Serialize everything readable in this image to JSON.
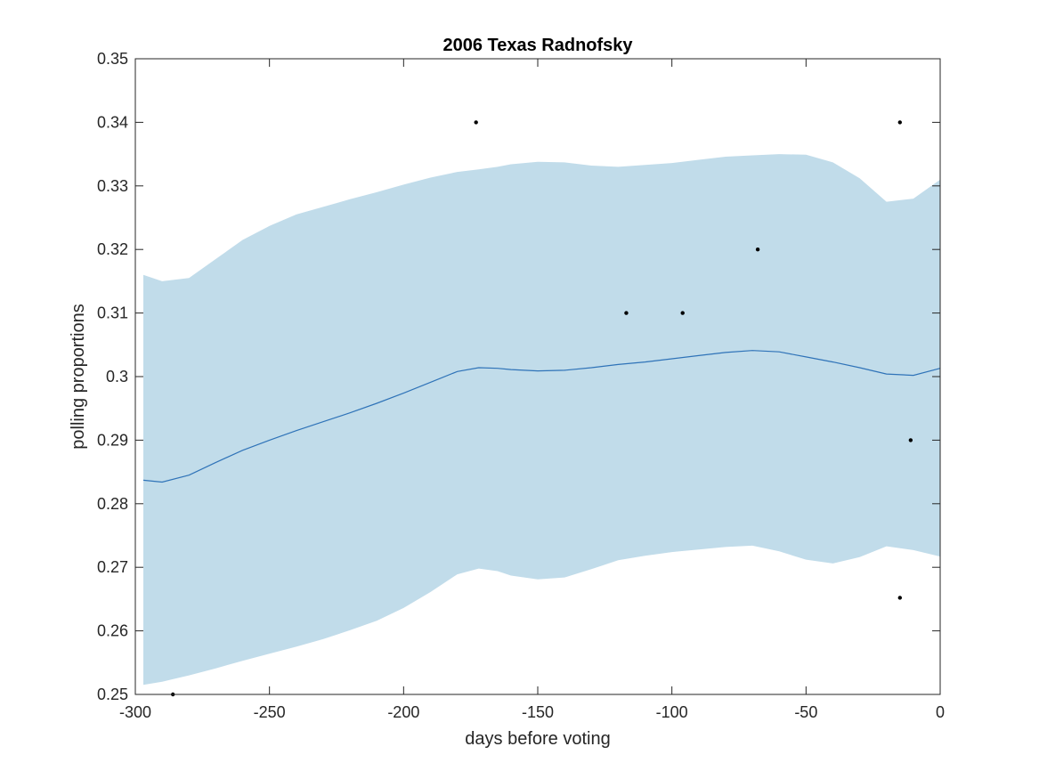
{
  "chart_data": {
    "type": "line",
    "title": "2006 Texas Radnofsky",
    "xlabel": "days before voting",
    "ylabel": "polling proportions",
    "xlim": [
      -300,
      0
    ],
    "ylim": [
      0.25,
      0.35
    ],
    "xticks": [
      -300,
      -250,
      -200,
      -150,
      -100,
      -50,
      0
    ],
    "yticks": [
      0.25,
      0.26,
      0.27,
      0.28,
      0.29,
      0.3,
      0.31,
      0.32,
      0.33,
      0.34,
      0.35
    ],
    "xtick_labels": [
      "-300",
      "-250",
      "-200",
      "-150",
      "-100",
      "-50",
      "0"
    ],
    "ytick_labels": [
      "0.25",
      "0.26",
      "0.27",
      "0.28",
      "0.29",
      "0.3",
      "0.31",
      "0.32",
      "0.33",
      "0.34",
      "0.35"
    ],
    "grid": false,
    "colors": {
      "mean": "#2f73b8",
      "band": "#c1dcea",
      "points": "#000000",
      "axis": "#262626"
    },
    "mean_curve": {
      "x": [
        -297,
        -290,
        -280,
        -270,
        -260,
        -250,
        -240,
        -230,
        -220,
        -210,
        -200,
        -190,
        -180,
        -172,
        -165,
        -160,
        -150,
        -140,
        -130,
        -120,
        -110,
        -100,
        -90,
        -80,
        -70,
        -60,
        -50,
        -40,
        -30,
        -20,
        -10,
        0
      ],
      "y": [
        0.2837,
        0.2834,
        0.2845,
        0.2865,
        0.2884,
        0.29,
        0.2915,
        0.2929,
        0.2943,
        0.2958,
        0.2974,
        0.2991,
        0.3008,
        0.3014,
        0.3013,
        0.3011,
        0.3009,
        0.301,
        0.3014,
        0.3019,
        0.3023,
        0.3028,
        0.3033,
        0.3038,
        0.3041,
        0.3039,
        0.3031,
        0.3023,
        0.3014,
        0.3004,
        0.3002,
        0.3013
      ]
    },
    "band_upper": {
      "x": [
        -297,
        -290,
        -280,
        -270,
        -260,
        -250,
        -240,
        -230,
        -220,
        -210,
        -200,
        -190,
        -180,
        -172,
        -165,
        -160,
        -150,
        -140,
        -130,
        -120,
        -110,
        -100,
        -90,
        -80,
        -70,
        -60,
        -50,
        -40,
        -30,
        -20,
        -10,
        0
      ],
      "y": [
        0.316,
        0.315,
        0.3155,
        0.3185,
        0.3215,
        0.3237,
        0.3255,
        0.3267,
        0.3279,
        0.329,
        0.3302,
        0.3313,
        0.3322,
        0.3326,
        0.333,
        0.3334,
        0.3338,
        0.3337,
        0.3332,
        0.333,
        0.3333,
        0.3336,
        0.3341,
        0.3346,
        0.3348,
        0.335,
        0.3349,
        0.3337,
        0.3312,
        0.3275,
        0.328,
        0.331
      ]
    },
    "band_lower": {
      "x": [
        -297,
        -290,
        -280,
        -270,
        -260,
        -250,
        -240,
        -230,
        -220,
        -210,
        -200,
        -190,
        -180,
        -172,
        -165,
        -160,
        -150,
        -140,
        -130,
        -120,
        -110,
        -100,
        -90,
        -80,
        -70,
        -60,
        -50,
        -40,
        -30,
        -20,
        -10,
        0
      ],
      "y": [
        0.2515,
        0.252,
        0.253,
        0.2541,
        0.2553,
        0.2564,
        0.2575,
        0.2587,
        0.2601,
        0.2616,
        0.2636,
        0.2661,
        0.2689,
        0.2698,
        0.2694,
        0.2687,
        0.2681,
        0.2684,
        0.2697,
        0.2711,
        0.2718,
        0.2724,
        0.2728,
        0.2732,
        0.2734,
        0.2725,
        0.2712,
        0.2706,
        0.2716,
        0.2733,
        0.2727,
        0.2717
      ]
    },
    "points": [
      {
        "x": -286,
        "y": 0.25
      },
      {
        "x": -173,
        "y": 0.34
      },
      {
        "x": -117,
        "y": 0.31
      },
      {
        "x": -96,
        "y": 0.31
      },
      {
        "x": -68,
        "y": 0.32
      },
      {
        "x": -15,
        "y": 0.34
      },
      {
        "x": -11,
        "y": 0.29
      },
      {
        "x": -15,
        "y": 0.2652
      }
    ]
  }
}
